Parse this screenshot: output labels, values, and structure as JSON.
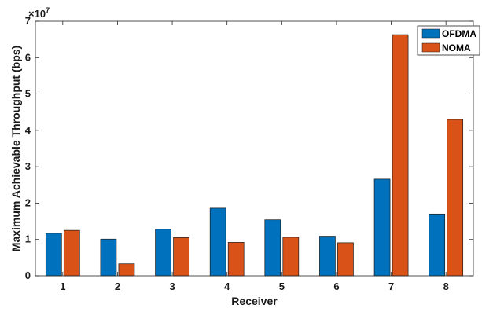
{
  "chart_data": {
    "type": "bar",
    "categories": [
      "1",
      "2",
      "3",
      "4",
      "5",
      "6",
      "7",
      "8"
    ],
    "series": [
      {
        "name": "OFDMA",
        "color": "#0072BD",
        "values": [
          11700000,
          10100000,
          12800000,
          18600000,
          15400000,
          10900000,
          26600000,
          17000000
        ]
      },
      {
        "name": "NOMA",
        "color": "#D95319",
        "values": [
          12500000,
          3300000,
          10500000,
          9200000,
          10600000,
          9100000,
          66300000,
          43000000
        ]
      }
    ],
    "xlabel": "Receiver",
    "ylabel": "Maximum Achievable Throughput (bps)",
    "ylim": [
      0,
      70000000
    ],
    "yticks": [
      0,
      1,
      2,
      3,
      4,
      5,
      6,
      7
    ],
    "y_multiplier_base": "×10",
    "y_multiplier_exp": "7",
    "grid": false,
    "legend_position": "top-right"
  }
}
